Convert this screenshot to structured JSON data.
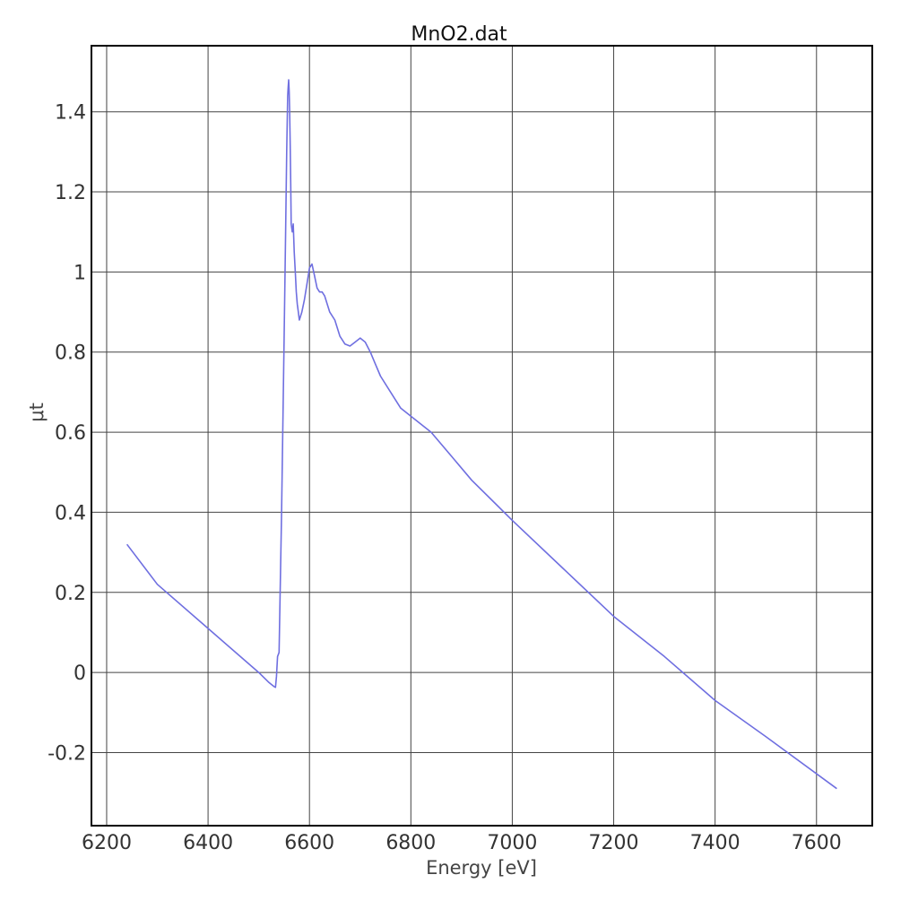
{
  "chart_data": {
    "type": "line",
    "title": "MnO2.dat",
    "xlabel": "Energy [eV]",
    "ylabel": "μt",
    "xlim": [
      6170,
      7710
    ],
    "ylim": [
      -0.3825,
      1.565
    ],
    "x_ticks": [
      6200,
      6400,
      6600,
      6800,
      7000,
      7200,
      7400,
      7600
    ],
    "x_tick_labels": [
      "6200",
      "6400",
      "6600",
      "6800",
      "7000",
      "7200",
      "7400",
      "7600"
    ],
    "y_ticks": [
      -0.2,
      0,
      0.2,
      0.4,
      0.6,
      0.8,
      1.0,
      1.2,
      1.4
    ],
    "y_tick_labels": [
      "-0.2",
      "0",
      "0.2",
      "0.4",
      "0.6",
      "0.8",
      "1",
      "1.2",
      "1.4"
    ],
    "grid": true,
    "series": [
      {
        "color": "#6f6fe0",
        "x": [
          6240,
          6300,
          6400,
          6500,
          6520,
          6530,
          6533,
          6535,
          6537,
          6540,
          6545,
          6550,
          6553,
          6555,
          6557,
          6558,
          6559,
          6560,
          6561,
          6562,
          6563,
          6564,
          6566,
          6568,
          6570,
          6572,
          6574,
          6576,
          6578,
          6580,
          6585,
          6590,
          6595,
          6600,
          6605,
          6610,
          6615,
          6620,
          6625,
          6630,
          6640,
          6650,
          6660,
          6670,
          6680,
          6690,
          6700,
          6710,
          6720,
          6730,
          6740,
          6760,
          6780,
          6800,
          6840,
          6880,
          6920,
          6960,
          7000,
          7100,
          7200,
          7300,
          7400,
          7500,
          7640
        ],
        "y": [
          0.32,
          0.22,
          0.11,
          0.0,
          -0.025,
          -0.035,
          -0.037,
          -0.01,
          0.04,
          0.05,
          0.4,
          0.83,
          1.1,
          1.3,
          1.44,
          1.46,
          1.48,
          1.45,
          1.4,
          1.32,
          1.22,
          1.12,
          1.1,
          1.12,
          1.05,
          1.0,
          0.95,
          0.92,
          0.9,
          0.88,
          0.9,
          0.93,
          0.97,
          1.01,
          1.02,
          0.99,
          0.96,
          0.95,
          0.95,
          0.94,
          0.9,
          0.88,
          0.84,
          0.82,
          0.815,
          0.825,
          0.835,
          0.825,
          0.8,
          0.77,
          0.74,
          0.7,
          0.66,
          0.64,
          0.6,
          0.54,
          0.48,
          0.43,
          0.38,
          0.26,
          0.14,
          0.04,
          -0.07,
          -0.16,
          -0.29
        ]
      }
    ]
  }
}
